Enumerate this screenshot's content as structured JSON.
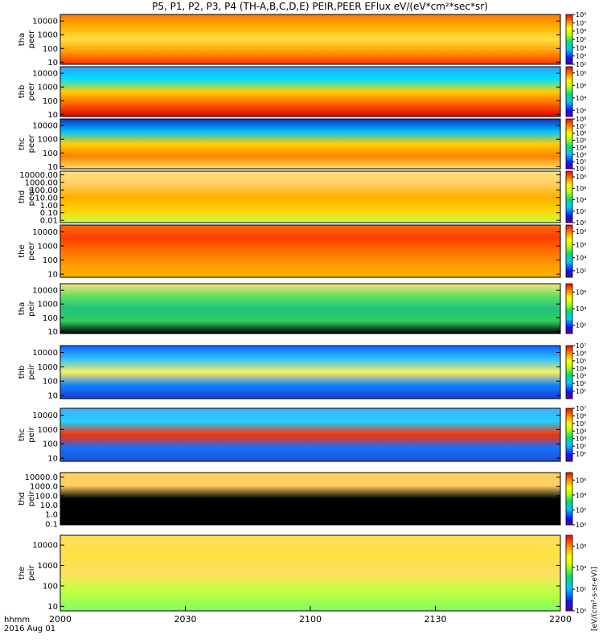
{
  "chart_data": {
    "type": "heatmap",
    "title": "P5, P1, P2, P3, P4 (TH-A,B,C,D,E) PEIR,PEER EFlux eV/(eV*cm²*sec*sr)",
    "x": {
      "ticks": [
        "2000",
        "2030",
        "2100",
        "2130",
        "2200"
      ],
      "range_minutes": [
        0,
        120
      ],
      "label_line1": "hhmm",
      "label_line2": "2016 Aug 01"
    },
    "colorbar_label": "[eV/(cm²-s-sr-eV)]",
    "panels": [
      {
        "id": "tha_peer",
        "label_top": "tha",
        "label_bottom": "peer",
        "yticks": [
          "10",
          "100",
          "1000",
          "10000"
        ],
        "ylim": [
          7,
          30000
        ],
        "scale": "log",
        "cbar_ticks": [
          "10²",
          "10³",
          "10⁴",
          "10⁵",
          "10⁶",
          "10⁷",
          "10⁸"
        ],
        "cbar_exp": [
          2,
          3,
          4,
          5,
          6,
          7,
          8
        ],
        "cbar_range": [
          2,
          8
        ]
      },
      {
        "id": "thb_peer",
        "label_top": "thb",
        "label_bottom": "peer",
        "yticks": [
          "10",
          "100",
          "1000",
          "10000"
        ],
        "ylim": [
          7,
          30000
        ],
        "scale": "log",
        "cbar_ticks": [
          "10²",
          "10⁴",
          "10⁶",
          "10⁸"
        ],
        "cbar_exp": [
          2,
          4,
          6,
          8
        ],
        "cbar_range": [
          1,
          9
        ]
      },
      {
        "id": "thc_peer",
        "label_top": "thc",
        "label_bottom": "peer",
        "yticks": [
          "10",
          "100",
          "1000",
          "10000"
        ],
        "ylim": [
          7,
          30000
        ],
        "scale": "log",
        "cbar_ticks": [
          "10¹",
          "10²",
          "10³",
          "10⁴",
          "10⁵",
          "10⁶",
          "10⁷",
          "10⁸"
        ],
        "cbar_exp": [
          1,
          2,
          3,
          4,
          5,
          6,
          7,
          8
        ],
        "cbar_range": [
          1,
          8
        ]
      },
      {
        "id": "thd_peer",
        "label_top": "thd",
        "label_bottom": "peer",
        "yticks": [
          "0.01",
          "0.10",
          "1.00",
          "10.00",
          "100.00",
          "1000.00",
          "10000.00"
        ],
        "ylim": [
          0.005,
          30000
        ],
        "scale": "log",
        "cbar_ticks": [
          "10⁰",
          "10²",
          "10⁴",
          "10⁶",
          "10⁸"
        ],
        "cbar_exp": [
          0,
          2,
          4,
          6,
          8
        ],
        "cbar_range": [
          0,
          9
        ]
      },
      {
        "id": "the_peer",
        "label_top": "the",
        "label_bottom": "peer",
        "yticks": [
          "10",
          "100",
          "1000",
          "10000"
        ],
        "ylim": [
          6,
          30000
        ],
        "scale": "log",
        "cbar_ticks": [
          "10²",
          "10⁴",
          "10⁶",
          "10⁸"
        ],
        "cbar_exp": [
          2,
          4,
          6,
          8
        ],
        "cbar_range": [
          1,
          9
        ]
      },
      {
        "id": "tha_peir",
        "label_top": "tha",
        "label_bottom": "peir",
        "yticks": [
          "10",
          "100",
          "1000",
          "10000"
        ],
        "ylim": [
          7,
          30000
        ],
        "scale": "log",
        "cbar_ticks": [
          "10²",
          "10⁴",
          "10⁶"
        ],
        "cbar_exp": [
          2,
          4,
          6
        ],
        "cbar_range": [
          1,
          7
        ]
      },
      {
        "id": "thb_peir",
        "label_top": "thb",
        "label_bottom": "peir",
        "yticks": [
          "10",
          "100",
          "1000",
          "10000"
        ],
        "ylim": [
          6,
          30000
        ],
        "scale": "log",
        "cbar_ticks": [
          "10¹",
          "10²",
          "10³",
          "10⁴",
          "10⁵",
          "10⁶",
          "10⁷"
        ],
        "cbar_exp": [
          1,
          2,
          3,
          4,
          5,
          6,
          7
        ],
        "cbar_range": [
          0,
          7
        ]
      },
      {
        "id": "thc_peir",
        "label_top": "thc",
        "label_bottom": "peir",
        "yticks": [
          "10",
          "100",
          "1000",
          "10000"
        ],
        "ylim": [
          6,
          30000
        ],
        "scale": "log",
        "cbar_ticks": [
          "10¹",
          "10²",
          "10³",
          "10⁴",
          "10⁵",
          "10⁶",
          "10⁷"
        ],
        "cbar_exp": [
          1,
          2,
          3,
          4,
          5,
          6,
          7
        ],
        "cbar_range": [
          0,
          7
        ]
      },
      {
        "id": "thd_peir",
        "label_top": "thd",
        "label_bottom": "peir",
        "yticks": [
          "0.1",
          "1.0",
          "10.0",
          "100.0",
          "1000.0",
          "10000.0"
        ],
        "ylim": [
          0.08,
          30000
        ],
        "scale": "log",
        "cbar_ticks": [
          "10⁰",
          "10²",
          "10⁴",
          "10⁶"
        ],
        "cbar_exp": [
          0,
          2,
          4,
          6
        ],
        "cbar_range": [
          0,
          7
        ]
      },
      {
        "id": "the_peir",
        "label_top": "the",
        "label_bottom": "peir",
        "yticks": [
          "10",
          "100",
          "1000",
          "10000"
        ],
        "ylim": [
          6,
          30000
        ],
        "scale": "log",
        "cbar_ticks": [
          "10⁰",
          "10²",
          "10⁴",
          "10⁶"
        ],
        "cbar_exp": [
          0,
          2,
          4,
          6
        ],
        "cbar_range": [
          0,
          7
        ]
      }
    ]
  }
}
